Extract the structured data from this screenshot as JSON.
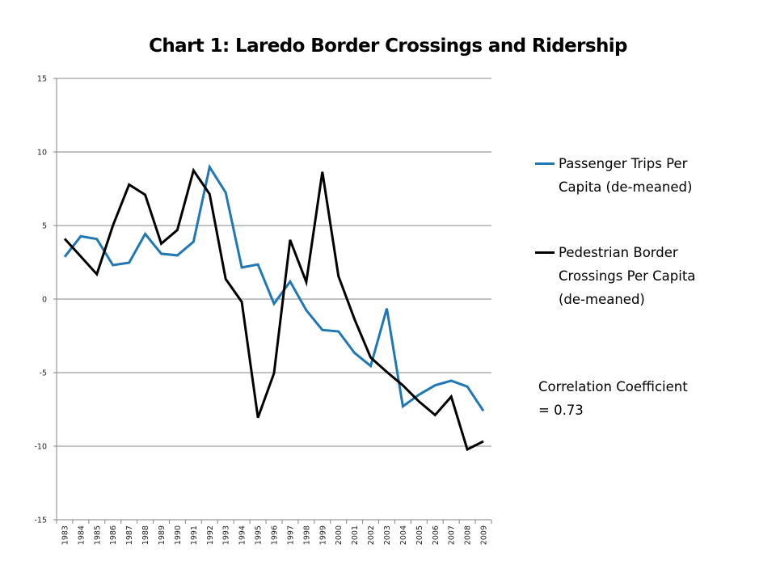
{
  "chart_data": {
    "type": "line",
    "title": "Chart 1: Laredo Border Crossings and Ridership",
    "xlabel": "",
    "ylabel": "",
    "ylim": [
      -15,
      15
    ],
    "yticks": [
      "15",
      "10",
      "5",
      "0",
      "-5",
      "-10",
      "-15"
    ],
    "ytick_values": [
      15,
      10,
      5,
      0,
      -5,
      -10,
      -15
    ],
    "grid": true,
    "legend_position": "right",
    "categories": [
      "1983",
      "1984",
      "1985",
      "1986",
      "1987",
      "1988",
      "1989",
      "1990",
      "1991",
      "1992",
      "1993",
      "1994",
      "1995",
      "1996",
      "1997",
      "1998",
      "1999",
      "2000",
      "2001",
      "2002",
      "2003",
      "2004",
      "2005",
      "2006",
      "2007",
      "2008",
      "2009"
    ],
    "series": [
      {
        "name": "Passenger Trips Per Capita (de-meaned)",
        "color": "#1f77b4",
        "values": [
          2.87,
          4.27,
          4.08,
          2.31,
          2.47,
          4.43,
          3.08,
          2.97,
          3.9,
          8.97,
          7.24,
          2.15,
          2.35,
          -0.32,
          1.19,
          -0.76,
          -2.1,
          -2.2,
          -3.66,
          -4.55,
          -0.64,
          -7.29,
          -6.5,
          -5.86,
          -5.55,
          -5.95,
          -7.6
        ]
      },
      {
        "name": "Pedestrian Border Crossings Per Capita (de-meaned)",
        "color": "#000000",
        "values": [
          4.1,
          2.9,
          1.69,
          5.0,
          7.78,
          7.09,
          3.77,
          4.7,
          8.74,
          7.14,
          1.37,
          -0.19,
          -8.06,
          -5.04,
          4.02,
          1.16,
          8.65,
          1.56,
          -1.37,
          -3.98,
          -4.95,
          -5.86,
          -6.96,
          -7.88,
          -6.63,
          -10.22,
          -9.67
        ]
      }
    ],
    "annotations": [
      {
        "text_line1": "Correlation Coefficient",
        "text_line2": "= 0.73"
      }
    ]
  },
  "legend": {
    "items": [
      {
        "line1": "Passenger Trips Per",
        "line2": "Capita (de-meaned)",
        "line3": ""
      },
      {
        "line1": "Pedestrian Border",
        "line2": "Crossings Per Capita",
        "line3": "(de-meaned)"
      }
    ]
  }
}
